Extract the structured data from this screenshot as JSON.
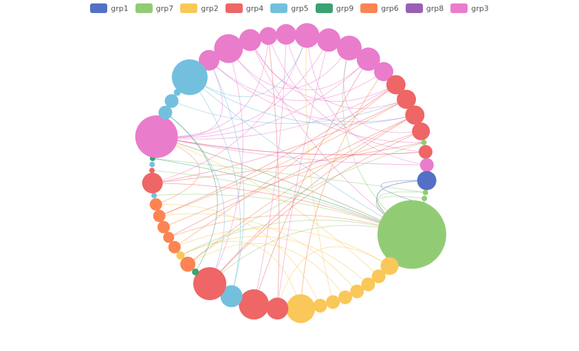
{
  "chart_data": {
    "type": "network",
    "series": [
      {
        "name": "grp1",
        "color": "#5470c6"
      },
      {
        "name": "grp7",
        "color": "#91cc75"
      },
      {
        "name": "grp2",
        "color": "#fac858"
      },
      {
        "name": "grp4",
        "color": "#ee6666"
      },
      {
        "name": "grp5",
        "color": "#73c0de"
      },
      {
        "name": "grp9",
        "color": "#3ba272"
      },
      {
        "name": "grp6",
        "color": "#fc8452"
      },
      {
        "name": "grp8",
        "color": "#9a60b4"
      },
      {
        "name": "grp3",
        "color": "#ea7ccc"
      }
    ],
    "nodes": [
      {
        "group": "grp3",
        "size": 15
      },
      {
        "group": "grp3",
        "size": 21
      },
      {
        "group": "grp3",
        "size": 16
      },
      {
        "group": "grp3",
        "size": 13
      },
      {
        "group": "grp3",
        "size": 15
      },
      {
        "group": "grp3",
        "size": 18
      },
      {
        "group": "grp3",
        "size": 17
      },
      {
        "group": "grp3",
        "size": 18
      },
      {
        "group": "grp3",
        "size": 17
      },
      {
        "group": "grp3",
        "size": 14
      },
      {
        "group": "grp4",
        "size": 14
      },
      {
        "group": "grp4",
        "size": 14
      },
      {
        "group": "grp4",
        "size": 14
      },
      {
        "group": "grp4",
        "size": 13
      },
      {
        "group": "grp7",
        "size": 4
      },
      {
        "group": "grp4",
        "size": 10
      },
      {
        "group": "grp3",
        "size": 10
      },
      {
        "group": "grp1",
        "size": 14
      },
      {
        "group": "grp7",
        "size": 4
      },
      {
        "group": "grp7",
        "size": 4
      },
      {
        "group": "grp1",
        "size": 3
      },
      {
        "group": "grp7",
        "size": 50
      },
      {
        "group": "grp2",
        "size": 13
      },
      {
        "group": "grp2",
        "size": 10
      },
      {
        "group": "grp2",
        "size": 10
      },
      {
        "group": "grp2",
        "size": 10
      },
      {
        "group": "grp2",
        "size": 10
      },
      {
        "group": "grp2",
        "size": 10
      },
      {
        "group": "grp2",
        "size": 10
      },
      {
        "group": "grp2",
        "size": 21
      },
      {
        "group": "grp4",
        "size": 16
      },
      {
        "group": "grp4",
        "size": 22
      },
      {
        "group": "grp5",
        "size": 16
      },
      {
        "group": "grp4",
        "size": 24
      },
      {
        "group": "grp9",
        "size": 5
      },
      {
        "group": "grp6",
        "size": 11
      },
      {
        "group": "grp2",
        "size": 6
      },
      {
        "group": "grp6",
        "size": 9
      },
      {
        "group": "grp6",
        "size": 8
      },
      {
        "group": "grp6",
        "size": 9
      },
      {
        "group": "grp6",
        "size": 9
      },
      {
        "group": "grp6",
        "size": 9
      },
      {
        "group": "grp5",
        "size": 4
      },
      {
        "group": "grp4",
        "size": 15
      },
      {
        "group": "grp4",
        "size": 4
      },
      {
        "group": "grp5",
        "size": 4
      },
      {
        "group": "grp9",
        "size": 4
      },
      {
        "group": "grp3",
        "size": 31
      },
      {
        "group": "grp5",
        "size": 10
      },
      {
        "group": "grp5",
        "size": 10
      },
      {
        "group": "grp5",
        "size": 5
      },
      {
        "group": "grp5",
        "size": 26
      }
    ],
    "links": [
      [
        0,
        12
      ],
      [
        0,
        47
      ],
      [
        1,
        14
      ],
      [
        1,
        33
      ],
      [
        2,
        10
      ],
      [
        2,
        21
      ],
      [
        3,
        15
      ],
      [
        3,
        47
      ],
      [
        4,
        11
      ],
      [
        4,
        31
      ],
      [
        5,
        16
      ],
      [
        5,
        43
      ],
      [
        6,
        47
      ],
      [
        6,
        30
      ],
      [
        7,
        13
      ],
      [
        7,
        1
      ],
      [
        8,
        2
      ],
      [
        8,
        47
      ],
      [
        9,
        0
      ],
      [
        9,
        29
      ],
      [
        16,
        47
      ],
      [
        47,
        21
      ],
      [
        47,
        10
      ],
      [
        47,
        15
      ],
      [
        51,
        12
      ],
      [
        51,
        21
      ],
      [
        51,
        5
      ],
      [
        49,
        11
      ],
      [
        48,
        33
      ],
      [
        32,
        0
      ],
      [
        32,
        51
      ],
      [
        10,
        40
      ],
      [
        11,
        43
      ],
      [
        12,
        38
      ],
      [
        13,
        33
      ],
      [
        15,
        47
      ],
      [
        30,
        3
      ],
      [
        31,
        8
      ],
      [
        33,
        12
      ],
      [
        43,
        14
      ],
      [
        43,
        21
      ],
      [
        21,
        47
      ],
      [
        21,
        44
      ],
      [
        21,
        42
      ],
      [
        21,
        36
      ],
      [
        21,
        7
      ],
      [
        21,
        17
      ],
      [
        21,
        18
      ],
      [
        21,
        33
      ],
      [
        14,
        35
      ],
      [
        18,
        46
      ],
      [
        19,
        21
      ],
      [
        17,
        21
      ],
      [
        17,
        20
      ],
      [
        22,
        37
      ],
      [
        23,
        47
      ],
      [
        24,
        36
      ],
      [
        25,
        40
      ],
      [
        26,
        35
      ],
      [
        27,
        5
      ],
      [
        28,
        41
      ],
      [
        29,
        36
      ],
      [
        29,
        9
      ],
      [
        22,
        30
      ],
      [
        35,
        12
      ],
      [
        37,
        10
      ],
      [
        38,
        21
      ],
      [
        39,
        13
      ],
      [
        40,
        11
      ],
      [
        41,
        47
      ],
      [
        34,
        48
      ],
      [
        46,
        21
      ]
    ]
  }
}
